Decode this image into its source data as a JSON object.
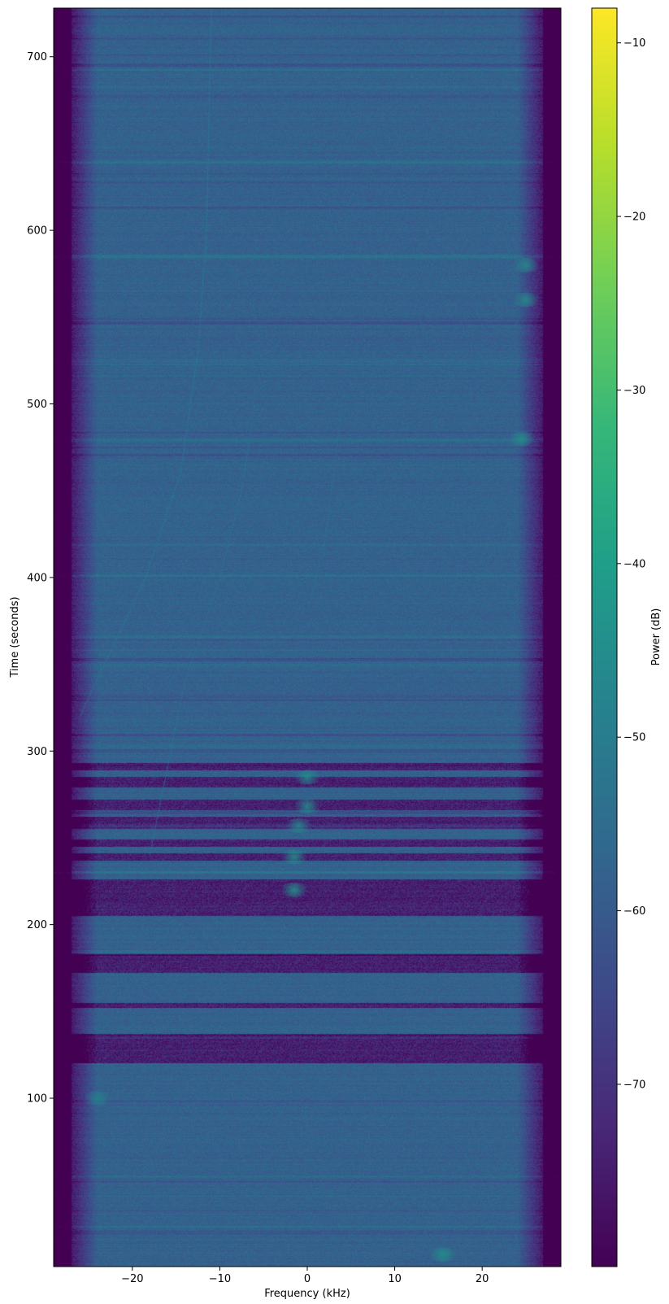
{
  "chart_data": {
    "type": "heatmap",
    "title": "",
    "xlabel": "Frequency (kHz)",
    "ylabel": "Time (seconds)",
    "colorbar_label": "Power (dB)",
    "colormap": "viridis",
    "xlim": [
      -29,
      29
    ],
    "ylim": [
      3,
      728
    ],
    "clim": [
      -80.5,
      -8
    ],
    "x_ticks": [
      -20,
      -10,
      0,
      10,
      20
    ],
    "x_tick_labels": [
      "−20",
      "−10",
      "0",
      "10",
      "20"
    ],
    "y_ticks": [
      100,
      200,
      300,
      400,
      500,
      600,
      700
    ],
    "y_tick_labels": [
      "100",
      "200",
      "300",
      "400",
      "500",
      "600",
      "700"
    ],
    "colorbar_ticks": [
      -70,
      -60,
      -50,
      -40,
      -30,
      -20,
      -10
    ],
    "colorbar_tick_labels": [
      "−70",
      "−60",
      "−50",
      "−40",
      "−30",
      "−20",
      "−10"
    ],
    "background_power_db": -58,
    "band_edges_khz": [
      -27,
      27
    ],
    "dark_bands_seconds": [
      [
        289,
        293
      ],
      [
        279,
        285
      ],
      [
        266,
        272
      ],
      [
        255,
        262
      ],
      [
        245,
        249
      ],
      [
        237,
        241
      ],
      [
        205,
        226
      ],
      [
        172,
        183
      ],
      [
        152,
        155
      ],
      [
        120,
        137
      ]
    ],
    "bright_spots": [
      {
        "f": 0,
        "t": 285,
        "db": -45
      },
      {
        "f": 0,
        "t": 268,
        "db": -44
      },
      {
        "f": -1,
        "t": 257,
        "db": -46
      },
      {
        "f": -1.5,
        "t": 239,
        "db": -44
      },
      {
        "f": -1.5,
        "t": 220,
        "db": -43
      },
      {
        "f": 25,
        "t": 580,
        "db": -45
      },
      {
        "f": 25,
        "t": 560,
        "db": -45
      },
      {
        "f": 24.5,
        "t": 480,
        "db": -44
      },
      {
        "f": -24,
        "t": 100,
        "db": -48
      },
      {
        "f": 15.5,
        "t": 10,
        "db": -44
      }
    ],
    "drift_lines": [
      {
        "points": [
          [
            -11,
            728
          ],
          [
            -11.5,
            600
          ],
          [
            -12.5,
            530
          ],
          [
            -14.5,
            460
          ],
          [
            -18.5,
            400
          ],
          [
            -26,
            320
          ]
        ],
        "db": -49
      },
      {
        "points": [
          [
            -6,
            500
          ],
          [
            -7.5,
            450
          ],
          [
            -10,
            400
          ],
          [
            -14,
            340
          ],
          [
            -16,
            290
          ],
          [
            -18,
            240
          ]
        ],
        "db": -51
      },
      {
        "points": [
          [
            4,
            500
          ],
          [
            2,
            420
          ],
          [
            0,
            380
          ]
        ],
        "db": -52
      }
    ],
    "grid": false,
    "legend": "none"
  }
}
